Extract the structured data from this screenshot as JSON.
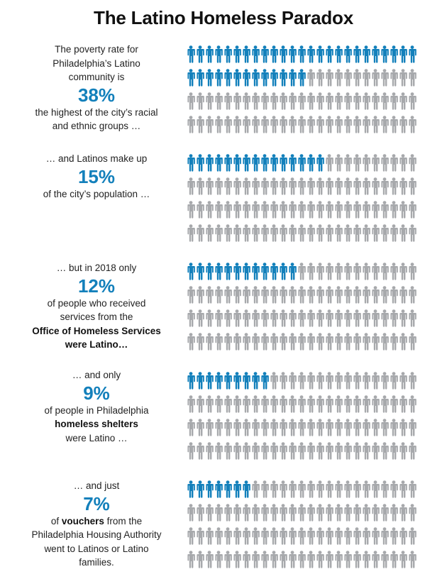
{
  "title": "The Latino Homeless Paradox",
  "colors": {
    "highlight": "#1380bb",
    "base": "#a7a9ac"
  },
  "icon": "person-icon",
  "chart_data": [
    {
      "type": "pictograph",
      "total_icons": 100,
      "value": 38,
      "unit": "%",
      "text_before": [
        "The poverty rate for",
        "Philadelphia’s Latino",
        "community is"
      ],
      "value_label": "38%",
      "text_after": [
        "the highest of the city’s racial",
        "and ethnic groups …"
      ],
      "bold_terms": []
    },
    {
      "type": "pictograph",
      "total_icons": 100,
      "value": 15,
      "unit": "%",
      "text_before": [
        "… and Latinos make up"
      ],
      "value_label": "15%",
      "text_after": [
        "of the city’s population …"
      ],
      "bold_terms": []
    },
    {
      "type": "pictograph",
      "total_icons": 100,
      "value": 12,
      "unit": "%",
      "text_before": [
        "… but in 2018 only"
      ],
      "value_label": "12%",
      "text_after": [
        "of people who received",
        "services from the"
      ],
      "bold_after": [
        "Office of Homeless Services",
        "were Latino…"
      ]
    },
    {
      "type": "pictograph",
      "total_icons": 100,
      "value": 9,
      "unit": "%",
      "text_before": [
        "… and only"
      ],
      "value_label": "9%",
      "text_after": [
        "of people in Philadelphia"
      ],
      "bold_after": [
        "homeless shelters"
      ],
      "text_tail": [
        "were Latino …"
      ]
    },
    {
      "type": "pictograph",
      "total_icons": 100,
      "value": 7,
      "unit": "%",
      "text_before": [
        "… and just"
      ],
      "value_label": "7%",
      "inline_prefix": "of ",
      "inline_bold": "vouchers",
      "inline_suffix": " from the",
      "text_after": [
        "Philadelphia Housing Authority",
        "went to Latinos or Latino",
        "families."
      ]
    }
  ]
}
